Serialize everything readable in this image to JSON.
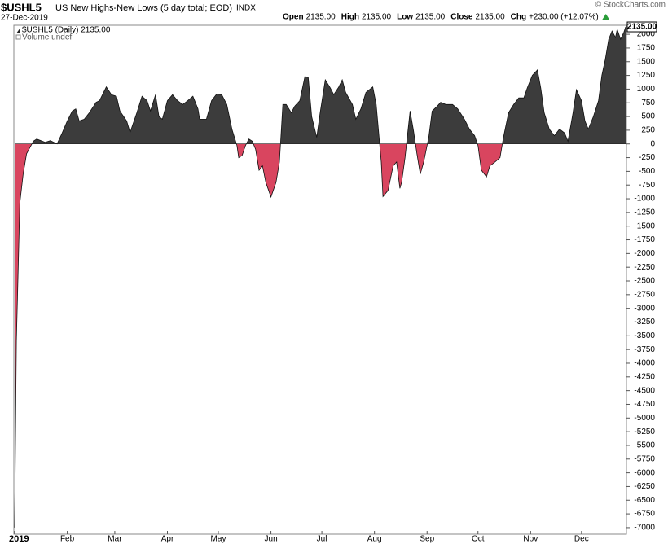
{
  "chart_data": {
    "type": "area",
    "title": "$USHL5",
    "subtitle": "US New Highs-New Lows (5 day total; EOD)",
    "exchange": "INDX",
    "date": "27-Dec-2019",
    "watermark": "© StockCharts.com",
    "quote": [
      [
        "Open",
        "2135.00"
      ],
      [
        "High",
        "2135.00"
      ],
      [
        "Low",
        "2135.00"
      ],
      [
        "Close",
        "2135.00"
      ],
      [
        "Chg",
        "+230.00 (+12.07%)"
      ]
    ],
    "legend": "$USHL5 (Daily) 2135.00",
    "volume_note": "Volume undef",
    "last_label": "2135.00",
    "color": "#3c3c3c",
    "negative_color": "#d9455f",
    "line_color": "#111111",
    "grid": false,
    "x": [
      0,
      1,
      3,
      5,
      7,
      11,
      13,
      18,
      21,
      25,
      28,
      31,
      34,
      36,
      38,
      41,
      44,
      48,
      50,
      54,
      57,
      60,
      62,
      66,
      68,
      72,
      75,
      78,
      80,
      83,
      85,
      87,
      90,
      93,
      96,
      99,
      102,
      105,
      108,
      109,
      113,
      116,
      119,
      122,
      125,
      128,
      131,
      132,
      134,
      136,
      138,
      140,
      142,
      144,
      146,
      148,
      151,
      154,
      156,
      158,
      160,
      163,
      165,
      168,
      171,
      173,
      175,
      178,
      180,
      183,
      186,
      188,
      191,
      193,
      195,
      199,
      201,
      204,
      207,
      211,
      213,
      216,
      217,
      220,
      223,
      225,
      227,
      228,
      230,
      233,
      235,
      237,
      239,
      241,
      244,
      246,
      249,
      251,
      254,
      258,
      261,
      265,
      268,
      271,
      273,
      275,
      278,
      280,
      283,
      286,
      288,
      291,
      294,
      297,
      300,
      302,
      305,
      308,
      310,
      312,
      315,
      318,
      321,
      324,
      326,
      329,
      331,
      334,
      336,
      338,
      341,
      344,
      346,
      348,
      350,
      352,
      354,
      355,
      357,
      359,
      360
    ],
    "values": [
      -7000,
      -3600,
      -1080,
      -550,
      -180,
      50,
      90,
      30,
      60,
      0,
      200,
      420,
      600,
      640,
      420,
      450,
      570,
      760,
      790,
      1040,
      900,
      870,
      600,
      420,
      210,
      570,
      870,
      790,
      600,
      900,
      500,
      450,
      790,
      900,
      790,
      720,
      790,
      870,
      640,
      450,
      450,
      790,
      910,
      900,
      720,
      270,
      -30,
      -250,
      -210,
      -30,
      90,
      50,
      -100,
      -480,
      -400,
      -700,
      -970,
      -700,
      -330,
      720,
      720,
      570,
      690,
      790,
      1230,
      1210,
      500,
      120,
      570,
      1170,
      1020,
      900,
      1040,
      1170,
      940,
      720,
      450,
      640,
      940,
      1040,
      720,
      -330,
      -960,
      -850,
      -400,
      -330,
      -810,
      -700,
      -250,
      600,
      240,
      -180,
      -550,
      -330,
      120,
      600,
      690,
      760,
      720,
      720,
      640,
      450,
      270,
      150,
      -30,
      -480,
      -600,
      -400,
      -330,
      -250,
      120,
      570,
      720,
      840,
      840,
      1020,
      1250,
      1350,
      1020,
      570,
      270,
      150,
      270,
      200,
      50,
      570,
      990,
      790,
      420,
      270,
      500,
      790,
      1250,
      1540,
      1910,
      2060,
      1940,
      2090,
      1910,
      2040,
      2135
    ],
    "xlim": [
      0,
      360
    ],
    "xticks": [
      {
        "value": 0,
        "label": "2019"
      },
      {
        "value": 31,
        "label": "Feb"
      },
      {
        "value": 59,
        "label": "Mar"
      },
      {
        "value": 90,
        "label": "Apr"
      },
      {
        "value": 120,
        "label": "May"
      },
      {
        "value": 151,
        "label": "Jun"
      },
      {
        "value": 181,
        "label": "Jul"
      },
      {
        "value": 212,
        "label": "Aug"
      },
      {
        "value": 243,
        "label": "Sep"
      },
      {
        "value": 273,
        "label": "Oct"
      },
      {
        "value": 304,
        "label": "Nov"
      },
      {
        "value": 334,
        "label": "Dec"
      }
    ],
    "ylim": [
      -7120,
      2165
    ],
    "yticks": [
      -7000,
      -6750,
      -6500,
      -6250,
      -6000,
      -5750,
      -5500,
      -5250,
      -5000,
      -4750,
      -4500,
      -4250,
      -4000,
      -3750,
      -3500,
      -3250,
      -3000,
      -2750,
      -2500,
      -2250,
      -2000,
      -1750,
      -1500,
      -1250,
      -1000,
      -750,
      -500,
      -250,
      0,
      250,
      500,
      750,
      1000,
      1250,
      1500,
      1750,
      2000
    ]
  }
}
